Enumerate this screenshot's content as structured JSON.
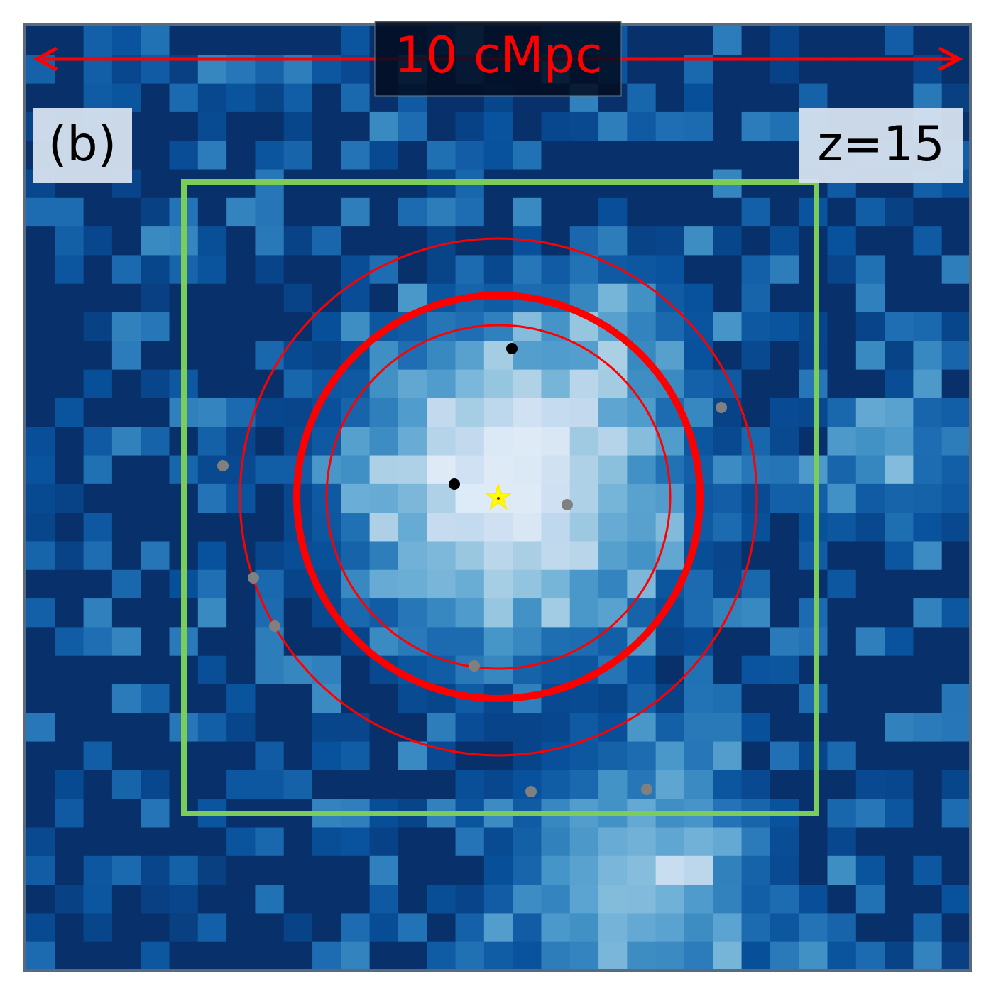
{
  "scale_bar": {
    "label": "10 cMpc"
  },
  "panel_label": "(b)",
  "redshift_label": "z=15"
}
